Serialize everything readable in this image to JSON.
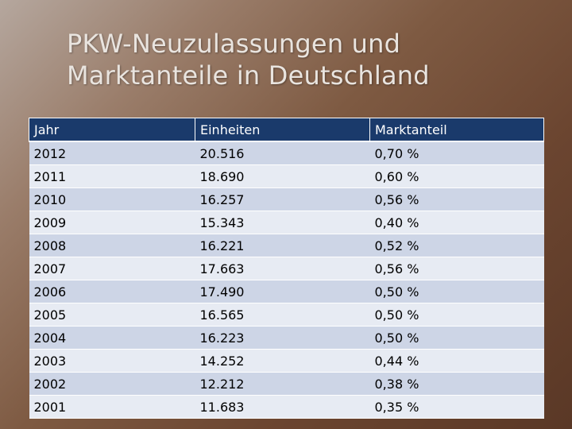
{
  "title": {
    "line1": "PKW-Neuzulassungen und",
    "line2": "Marktanteile in Deutschland"
  },
  "table": {
    "headers": [
      "Jahr",
      "Einheiten",
      "Marktanteil"
    ],
    "rows": [
      [
        "2012",
        "20.516",
        "0,70 %"
      ],
      [
        "2011",
        "18.690",
        "0,60 %"
      ],
      [
        "2010",
        "16.257",
        "0,56 %"
      ],
      [
        "2009",
        "15.343",
        "0,40 %"
      ],
      [
        "2008",
        "16.221",
        "0,52 %"
      ],
      [
        "2007",
        "17.663",
        "0,56 %"
      ],
      [
        "2006",
        "17.490",
        "0,50 %"
      ],
      [
        "2005",
        "16.565",
        "0,50 %"
      ],
      [
        "2004",
        "16.223",
        "0,50 %"
      ],
      [
        "2003",
        "14.252",
        "0,44 %"
      ],
      [
        "2002",
        "12.212",
        "0,38 %"
      ],
      [
        "2001",
        "11.683",
        "0,35 %"
      ]
    ]
  },
  "colors": {
    "header_bg": "#1a3a6b",
    "row_odd": "#cdd5e6",
    "row_even": "#e7ebf3"
  }
}
